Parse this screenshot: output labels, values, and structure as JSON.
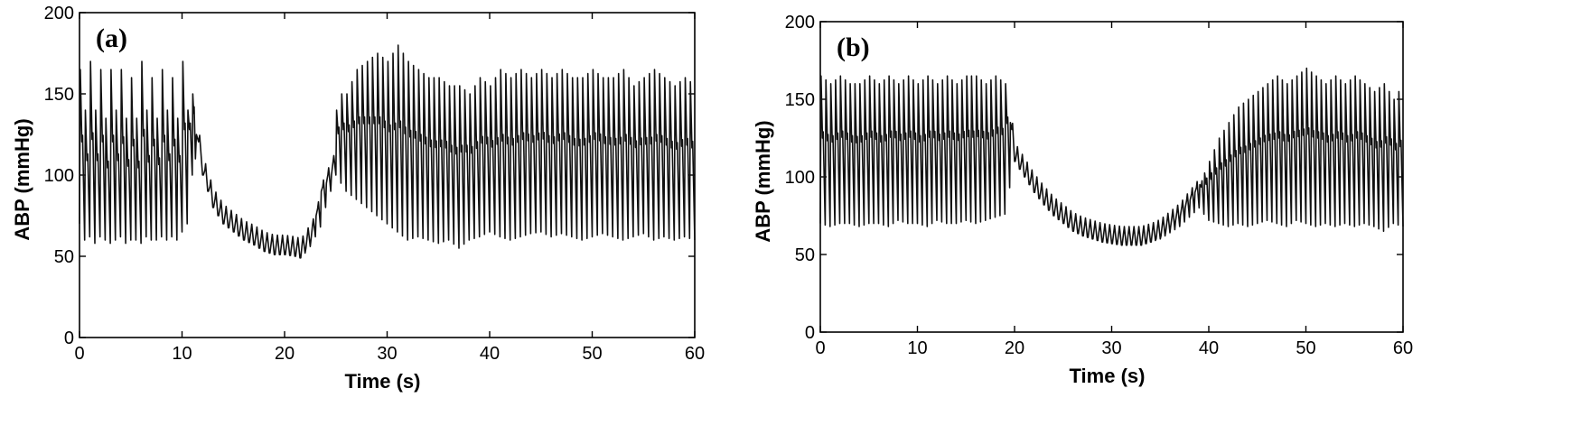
{
  "chart_data": [
    {
      "type": "line",
      "panel_label": "(a)",
      "xlabel": "Time (s)",
      "ylabel": "ABP (mmHg)",
      "xlim": [
        0,
        60
      ],
      "ylim": [
        0,
        200
      ],
      "xticks": [
        0,
        10,
        20,
        30,
        40,
        50,
        60
      ],
      "yticks": [
        0,
        50,
        100,
        150,
        200
      ],
      "grid": false,
      "series": [
        {
          "values_description_free": true,
          "x": [
            0,
            0.5,
            1,
            1.5,
            2,
            2.5,
            3,
            3.5,
            4,
            4.5,
            5,
            5.5,
            6,
            6.5,
            7,
            7.5,
            8,
            8.5,
            9,
            9.5,
            10,
            10.5,
            11,
            11.3,
            12,
            13,
            14,
            15,
            16,
            17,
            18,
            19,
            20,
            21,
            21.5,
            22,
            22.5,
            23,
            23.5,
            24,
            24.5,
            25,
            25.5,
            26,
            27,
            28,
            29,
            30,
            31,
            32,
            33,
            34,
            35,
            36,
            37,
            38,
            39,
            40,
            41,
            42,
            43,
            44,
            45,
            46,
            47,
            48,
            49,
            50,
            51,
            52,
            53,
            54,
            55,
            56,
            57,
            58,
            59,
            60
          ],
          "peaks": [
            165,
            140,
            170,
            140,
            165,
            135,
            165,
            140,
            165,
            135,
            160,
            135,
            170,
            140,
            160,
            135,
            165,
            140,
            160,
            135,
            170,
            140,
            150,
            125,
            100,
            80,
            70,
            65,
            60,
            57,
            53,
            51,
            51,
            50,
            49,
            55,
            60,
            75,
            90,
            95,
            100,
            140,
            150,
            150,
            165,
            170,
            175,
            170,
            180,
            170,
            165,
            160,
            160,
            155,
            155,
            150,
            160,
            155,
            165,
            160,
            165,
            160,
            165,
            160,
            165,
            160,
            160,
            165,
            160,
            160,
            165,
            155,
            160,
            165,
            160,
            155,
            160,
            155
          ],
          "troughs": [
            70,
            60,
            62,
            58,
            62,
            60,
            58,
            60,
            62,
            58,
            60,
            60,
            58,
            62,
            60,
            60,
            62,
            60,
            62,
            60,
            65,
            70,
            100,
            110,
            100,
            80,
            70,
            65,
            60,
            57,
            53,
            51,
            51,
            50,
            49,
            52,
            56,
            62,
            68,
            80,
            90,
            100,
            95,
            90,
            85,
            80,
            75,
            70,
            65,
            60,
            62,
            60,
            58,
            60,
            55,
            60,
            62,
            65,
            62,
            60,
            62,
            64,
            65,
            62,
            64,
            62,
            60,
            62,
            64,
            62,
            60,
            62,
            64,
            60,
            62,
            60,
            62,
            60
          ]
        }
      ]
    },
    {
      "type": "line",
      "panel_label": "(b)",
      "xlabel": "Time (s)",
      "ylabel": "ABP (mmHg)",
      "xlim": [
        0,
        60
      ],
      "ylim": [
        0,
        200
      ],
      "xticks": [
        0,
        10,
        20,
        30,
        40,
        50,
        60
      ],
      "yticks": [
        0,
        50,
        100,
        150,
        200
      ],
      "grid": false,
      "series": [
        {
          "x": [
            0,
            1,
            2,
            3,
            4,
            5,
            6,
            7,
            8,
            9,
            10,
            11,
            12,
            13,
            14,
            15,
            16,
            17,
            18,
            19,
            20,
            21,
            22,
            23,
            24,
            25,
            26,
            27,
            28,
            29,
            30,
            31,
            32,
            33,
            34,
            35,
            36,
            37,
            38,
            39,
            40,
            41,
            42,
            43,
            44,
            45,
            46,
            47,
            48,
            49,
            50,
            51,
            52,
            53,
            54,
            55,
            56,
            57,
            58,
            59,
            60
          ],
          "peaks": [
            165,
            160,
            165,
            160,
            160,
            165,
            160,
            165,
            160,
            165,
            160,
            165,
            160,
            165,
            160,
            165,
            165,
            160,
            165,
            160,
            110,
            100,
            90,
            82,
            75,
            70,
            65,
            62,
            60,
            58,
            57,
            56,
            56,
            56,
            58,
            62,
            68,
            75,
            85,
            95,
            110,
            125,
            135,
            145,
            150,
            155,
            160,
            165,
            160,
            165,
            170,
            165,
            160,
            165,
            160,
            165,
            160,
            155,
            160,
            150,
            160
          ],
          "troughs": [
            70,
            68,
            70,
            70,
            68,
            70,
            70,
            68,
            72,
            70,
            70,
            68,
            72,
            70,
            70,
            72,
            70,
            72,
            74,
            76,
            110,
            100,
            90,
            82,
            75,
            70,
            65,
            62,
            60,
            58,
            57,
            56,
            56,
            56,
            58,
            60,
            64,
            68,
            74,
            80,
            72,
            70,
            68,
            70,
            68,
            70,
            72,
            70,
            68,
            72,
            70,
            68,
            70,
            68,
            70,
            68,
            70,
            68,
            65,
            70,
            68
          ]
        }
      ]
    }
  ]
}
